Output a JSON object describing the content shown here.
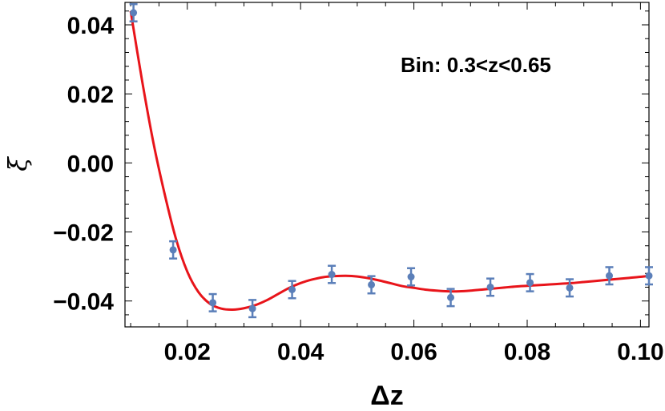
{
  "chart_data": {
    "type": "scatter",
    "title": "",
    "xlabel": "Δz",
    "ylabel": "ξ",
    "annotation": "Bin: 0.3<z<0.65",
    "xlim": [
      0.009,
      0.1015
    ],
    "ylim": [
      -0.0475,
      0.0465
    ],
    "x_ticks": [
      0.02,
      0.04,
      0.06,
      0.08,
      0.1
    ],
    "x_tick_labels": [
      "0.02",
      "0.04",
      "0.06",
      "0.08",
      "0.10"
    ],
    "y_ticks": [
      0.04,
      0.02,
      0.0,
      -0.02,
      -0.04
    ],
    "y_tick_labels": [
      "0.04",
      "0.02",
      "0.00",
      "−0.02",
      "−0.04"
    ],
    "grid": false,
    "colors": {
      "points": "#5b7fb9",
      "fit": "#e8141a",
      "axes": "#000000"
    },
    "series": [
      {
        "kind": "points_with_errorbars",
        "x": [
          0.0105,
          0.0175,
          0.0245,
          0.0315,
          0.0385,
          0.0455,
          0.0525,
          0.0595,
          0.0665,
          0.0735,
          0.0805,
          0.0875,
          0.0945,
          0.1015
        ],
        "y": [
          0.0435,
          -0.0252,
          -0.0405,
          -0.0422,
          -0.0367,
          -0.0323,
          -0.0353,
          -0.033,
          -0.039,
          -0.036,
          -0.0347,
          -0.0362,
          -0.0327,
          -0.0327
        ],
        "yerr": [
          0.0025,
          0.0025,
          0.0025,
          0.0025,
          0.0025,
          0.0025,
          0.0025,
          0.0025,
          0.0025,
          0.0025,
          0.0025,
          0.0025,
          0.0025,
          0.0025
        ]
      },
      {
        "kind": "fit_curve",
        "x": [
          0.01,
          0.012,
          0.014,
          0.016,
          0.018,
          0.02,
          0.022,
          0.024,
          0.026,
          0.028,
          0.03,
          0.032,
          0.034,
          0.036,
          0.038,
          0.04,
          0.042,
          0.044,
          0.046,
          0.048,
          0.05,
          0.052,
          0.054,
          0.056,
          0.058,
          0.06,
          0.062,
          0.064,
          0.066,
          0.068,
          0.07,
          0.072,
          0.074,
          0.076,
          0.078,
          0.08,
          0.082,
          0.084,
          0.086,
          0.088,
          0.09,
          0.092,
          0.094,
          0.096,
          0.098,
          0.1,
          0.1015
        ],
        "y": [
          0.044,
          0.024,
          0.006,
          -0.009,
          -0.022,
          -0.0315,
          -0.0375,
          -0.0408,
          -0.0422,
          -0.0425,
          -0.0421,
          -0.0412,
          -0.0398,
          -0.038,
          -0.0362,
          -0.0348,
          -0.0338,
          -0.0331,
          -0.0328,
          -0.0327,
          -0.0329,
          -0.0334,
          -0.0341,
          -0.0349,
          -0.0357,
          -0.0362,
          -0.0367,
          -0.037,
          -0.0372,
          -0.0372,
          -0.037,
          -0.0367,
          -0.0364,
          -0.0361,
          -0.0358,
          -0.0356,
          -0.0354,
          -0.0352,
          -0.035,
          -0.0348,
          -0.0345,
          -0.0342,
          -0.0339,
          -0.0336,
          -0.0333,
          -0.033,
          -0.0327
        ]
      }
    ]
  }
}
